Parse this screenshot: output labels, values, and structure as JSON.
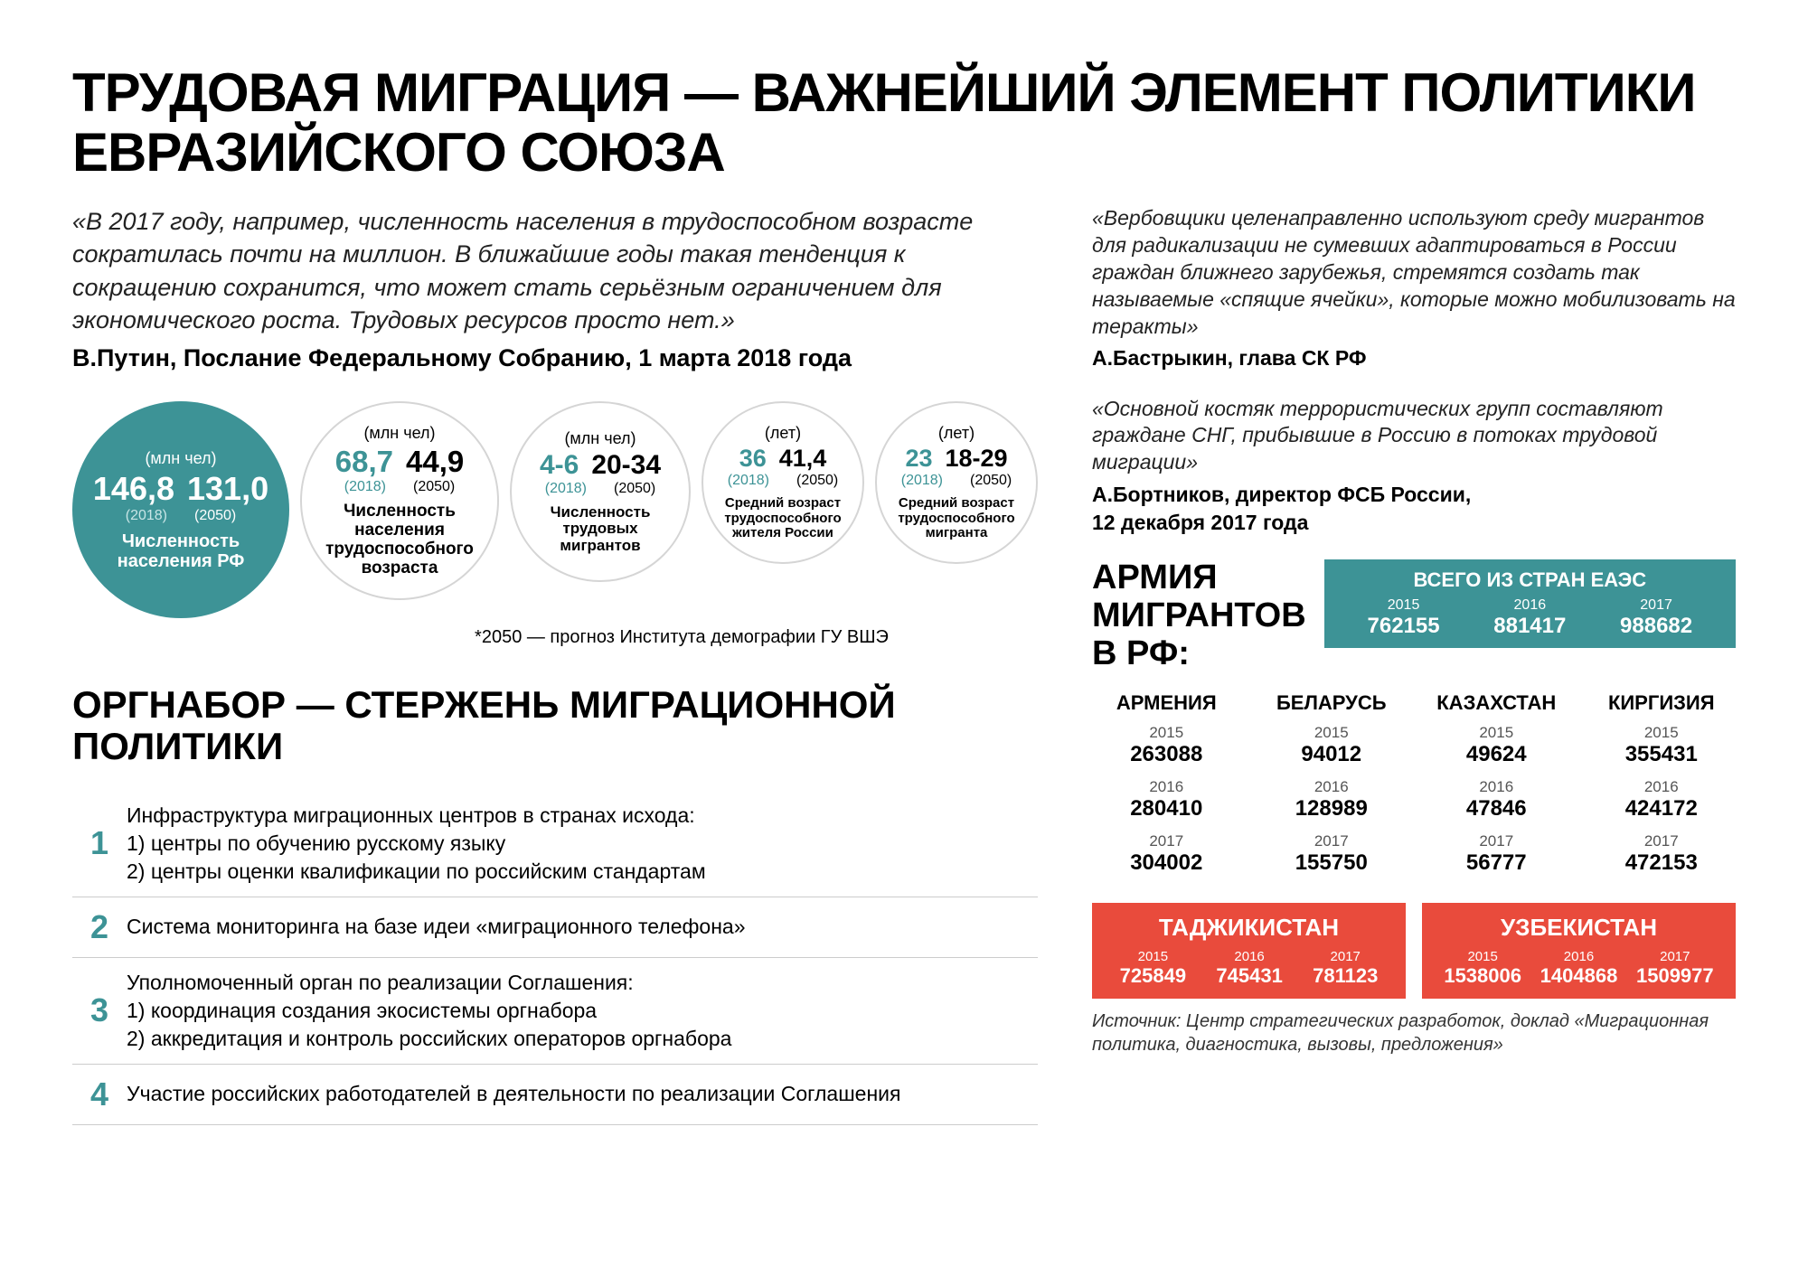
{
  "colors": {
    "teal": "#3d9396",
    "red": "#e94b3c",
    "circle_border": "#d5d5d5",
    "text": "#222222",
    "bg": "#ffffff"
  },
  "title": "ТРУДОВАЯ МИГРАЦИЯ — ВАЖНЕЙШИЙ ЭЛЕМЕНТ ПОЛИТИКИ ЕВРАЗИЙСКОГО СОЮЗА",
  "left_quote": {
    "text": "«В 2017 году, например, численность населения в трудоспособном возрасте сократилась почти на миллион. В ближайшие годы такая тенденция к сокращению сохранится, что может стать серьёзным ограничением для экономического роста. Трудовых ресурсов просто нет.»",
    "author": "В.Путин, Послание  Федеральному Собранию, 1 марта 2018 года"
  },
  "right_quotes": [
    {
      "text": "«Вербовщики целенаправленно используют среду мигрантов для радикализации не сумевших адаптироваться в России граждан ближнего зарубежья, стремятся создать так называемые «спящие ячейки», которые можно мобилизовать на теракты»",
      "author": "А.Бастрыкин, глава СК РФ"
    },
    {
      "text": "«Основной костяк террористических групп составляют граждане СНГ, прибывшие в Россию в потоках трудовой миграции»",
      "author": "А.Бортников, директор ФСБ России,\n12 декабря 2017 года"
    }
  ],
  "circles": [
    {
      "filled": true,
      "size": 240,
      "unit": "(млн чел)",
      "val2018": "146,8",
      "val2050": "131,0",
      "caption": "Численность населения РФ"
    },
    {
      "filled": false,
      "size": 220,
      "unit": "(млн чел)",
      "val2018": "68,7",
      "val2050": "44,9",
      "caption": "Численность населения трудоспособного возраста"
    },
    {
      "filled": false,
      "size": 200,
      "unit": "(млн чел)",
      "val2018": "4-6",
      "val2050": "20-34",
      "caption": "Численность трудовых мигрантов"
    },
    {
      "filled": false,
      "size": 180,
      "unit": "(лет)",
      "val2018": "36",
      "val2050": "41,4",
      "caption": "Средний возраст трудоспособного жителя России"
    },
    {
      "filled": false,
      "size": 180,
      "unit": "(лет)",
      "val2018": "23",
      "val2050": "18-29",
      "caption": "Средний возраст трудоспособного мигранта"
    }
  ],
  "years_labels": {
    "y1": "(2018)",
    "y2": "(2050)"
  },
  "footnote": "*2050 — прогноз Института демографии ГУ ВШЭ",
  "policy_title": "ОРГНАБОР — СТЕРЖЕНЬ МИГРАЦИОННОЙ ПОЛИТИКИ",
  "policy_items": [
    {
      "num": "1",
      "text": "Инфраструктура миграционных центров в странах исхода:\n1) центры по обучению русскому языку\n2) центры оценки квалификации по российским стандартам"
    },
    {
      "num": "2",
      "text": "Система мониторинга на базе идеи «миграционного телефона»"
    },
    {
      "num": "3",
      "text": "Уполномоченный орган по реализации Соглашения:\n1) координация создания экосистемы оргнабора\n2) аккредитация и контроль российских операторов оргнабора"
    },
    {
      "num": "4",
      "text": "Участие российских работодателей в деятельности по реализации Соглашения"
    }
  ],
  "migrants": {
    "title": "АРМИЯ МИГРАНТОВ В РФ:",
    "total_label": "ВСЕГО ИЗ СТРАН ЕАЭС",
    "years": [
      "2015",
      "2016",
      "2017"
    ],
    "total_values": [
      "762155",
      "881417",
      "988682"
    ],
    "countries": [
      {
        "name": "АРМЕНИЯ",
        "values": [
          "263088",
          "280410",
          "304002"
        ]
      },
      {
        "name": "БЕЛАРУСЬ",
        "values": [
          "94012",
          "128989",
          "155750"
        ]
      },
      {
        "name": "КАЗАХСТАН",
        "values": [
          "49624",
          "47846",
          "56777"
        ]
      },
      {
        "name": "КИРГИЗИЯ",
        "values": [
          "355431",
          "424172",
          "472153"
        ]
      }
    ],
    "red_countries": [
      {
        "name": "ТАДЖИКИСТАН",
        "values": [
          "725849",
          "745431",
          "781123"
        ]
      },
      {
        "name": "УЗБЕКИСТАН",
        "values": [
          "1538006",
          "1404868",
          "1509977"
        ]
      }
    ],
    "source": "Источник: Центр стратегических разработок, доклад «Миграционная политика, диагностика, вызовы, предложения»"
  }
}
